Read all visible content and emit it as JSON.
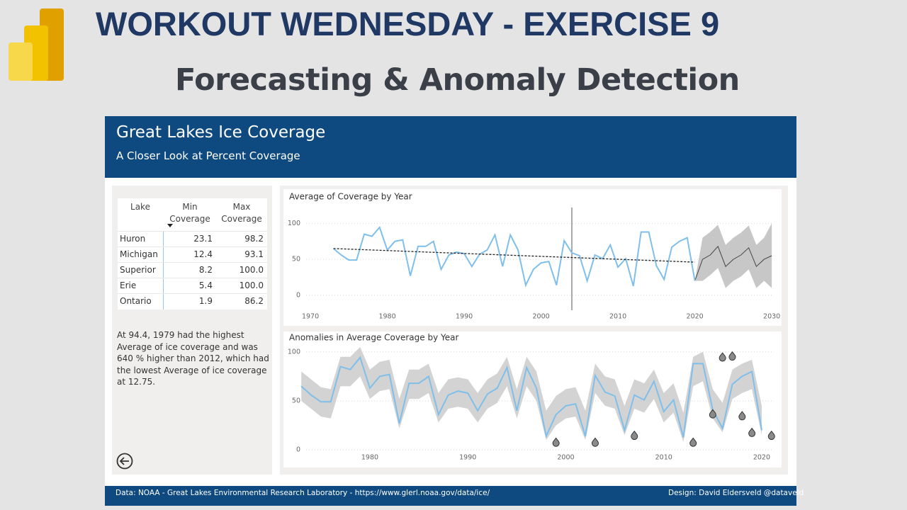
{
  "header": {
    "title": "WORKOUT WEDNESDAY - EXERCISE 9",
    "subtitle": "Forecasting & Anomaly Detection"
  },
  "report": {
    "title": "Great Lakes Ice Coverage",
    "subtitle": "A Closer Look at Percent Coverage"
  },
  "table": {
    "columns": [
      "Lake",
      "Min Coverage",
      "Max Coverage"
    ],
    "rows": [
      [
        "Huron",
        "23.1",
        "98.2"
      ],
      [
        "Michigan",
        "12.4",
        "93.1"
      ],
      [
        "Superior",
        "8.2",
        "100.0"
      ],
      [
        "Erie",
        "5.4",
        "100.0"
      ],
      [
        "Ontario",
        "1.9",
        "86.2"
      ]
    ]
  },
  "insight": "At 94.4, 1979 had the highest Average of ice coverage and was 640 % higher than 2012, which had the lowest Average of ice coverage at 12.75.",
  "footer": {
    "source": "Data: NOAA - Great Lakes Environmental Research Laboratory - https://www.glerl.noaa.gov/data/ice/",
    "credit": "Design: David Eldersveld  @dataveld"
  },
  "chart_data": [
    {
      "type": "line",
      "title": "Average of Coverage by Year",
      "color": "#7fbfea",
      "x": [
        1973,
        1974,
        1975,
        1976,
        1977,
        1978,
        1979,
        1980,
        1981,
        1982,
        1983,
        1984,
        1985,
        1986,
        1987,
        1988,
        1989,
        1990,
        1991,
        1992,
        1993,
        1994,
        1995,
        1996,
        1997,
        1998,
        1999,
        2000,
        2001,
        2002,
        2003,
        2004,
        2005,
        2006,
        2007,
        2008,
        2009,
        2010,
        2011,
        2012,
        2013,
        2014,
        2015,
        2016,
        2017,
        2018,
        2019,
        2020
      ],
      "values": [
        65,
        56,
        49,
        49,
        85,
        82,
        94.4,
        63,
        75,
        77,
        27,
        68,
        68,
        75,
        36,
        56,
        60,
        58,
        40,
        57,
        63,
        84,
        40,
        84,
        63,
        14,
        36,
        45,
        47,
        14,
        76,
        59,
        55,
        20,
        56,
        51,
        70,
        39,
        51,
        12.75,
        88,
        88,
        41,
        22,
        67,
        75,
        80,
        20
      ],
      "trend": {
        "x": [
          1973,
          2020
        ],
        "values": [
          65,
          46
        ]
      },
      "forecast": {
        "x": [
          2020,
          2021,
          2022,
          2023,
          2024,
          2025,
          2026,
          2027,
          2028,
          2029,
          2030
        ],
        "values": [
          20,
          50,
          56,
          68,
          40,
          50,
          56,
          66,
          40,
          50,
          55
        ],
        "lower": [
          20,
          20,
          28,
          38,
          10,
          20,
          26,
          36,
          10,
          20,
          10
        ],
        "upper": [
          20,
          80,
          88,
          98,
          70,
          80,
          87,
          97,
          70,
          80,
          100
        ]
      },
      "reference_x": 2004,
      "xlim": [
        1967,
        2031
      ],
      "ylim": [
        -15,
        125
      ],
      "xticks": [
        1970,
        1980,
        1990,
        2000,
        2010,
        2020,
        2030
      ],
      "yticks": [
        0,
        50,
        100
      ],
      "grid": true
    },
    {
      "type": "line",
      "title": "Anomalies in Average Coverage by Year",
      "color": "#7fbfea",
      "x": [
        1973,
        1974,
        1975,
        1976,
        1977,
        1978,
        1979,
        1980,
        1981,
        1982,
        1983,
        1984,
        1985,
        1986,
        1987,
        1988,
        1989,
        1990,
        1991,
        1992,
        1993,
        1994,
        1995,
        1996,
        1997,
        1998,
        1999,
        2000,
        2001,
        2002,
        2003,
        2004,
        2005,
        2006,
        2007,
        2008,
        2009,
        2010,
        2011,
        2012,
        2013,
        2014,
        2015,
        2016,
        2017,
        2018,
        2019,
        2020
      ],
      "values": [
        65,
        56,
        49,
        49,
        85,
        82,
        94.4,
        63,
        75,
        77,
        27,
        68,
        68,
        75,
        36,
        56,
        60,
        58,
        40,
        57,
        63,
        84,
        40,
        84,
        63,
        14,
        36,
        45,
        47,
        14,
        76,
        59,
        55,
        20,
        56,
        51,
        70,
        39,
        51,
        12.75,
        88,
        88,
        41,
        22,
        67,
        75,
        80,
        20
      ],
      "band_lower": [
        50,
        42,
        34,
        32,
        65,
        65,
        75,
        52,
        60,
        62,
        22,
        52,
        52,
        58,
        28,
        42,
        44,
        42,
        28,
        42,
        48,
        65,
        32,
        65,
        50,
        10,
        25,
        32,
        34,
        10,
        58,
        45,
        42,
        15,
        42,
        38,
        52,
        28,
        38,
        8,
        65,
        70,
        32,
        18,
        52,
        58,
        62,
        15
      ],
      "band_upper": [
        80,
        72,
        64,
        62,
        95,
        95,
        105,
        82,
        90,
        92,
        52,
        82,
        82,
        88,
        58,
        72,
        74,
        72,
        58,
        72,
        78,
        95,
        62,
        95,
        80,
        40,
        55,
        62,
        64,
        40,
        88,
        75,
        72,
        45,
        72,
        68,
        82,
        58,
        68,
        38,
        95,
        100,
        62,
        48,
        82,
        88,
        92,
        45
      ],
      "anomalies": {
        "x": [
          1999,
          2003,
          2007,
          2013,
          2015,
          2016,
          2017,
          2018,
          2019,
          2021
        ],
        "values": [
          7,
          7,
          14,
          7,
          36,
          94,
          95,
          34,
          17,
          14
        ]
      },
      "xlim": [
        1972,
        2022
      ],
      "ylim": [
        -5,
        110
      ],
      "xticks": [
        1980,
        1990,
        2000,
        2010,
        2020
      ],
      "yticks": [
        0,
        50,
        100
      ],
      "grid": true
    }
  ]
}
